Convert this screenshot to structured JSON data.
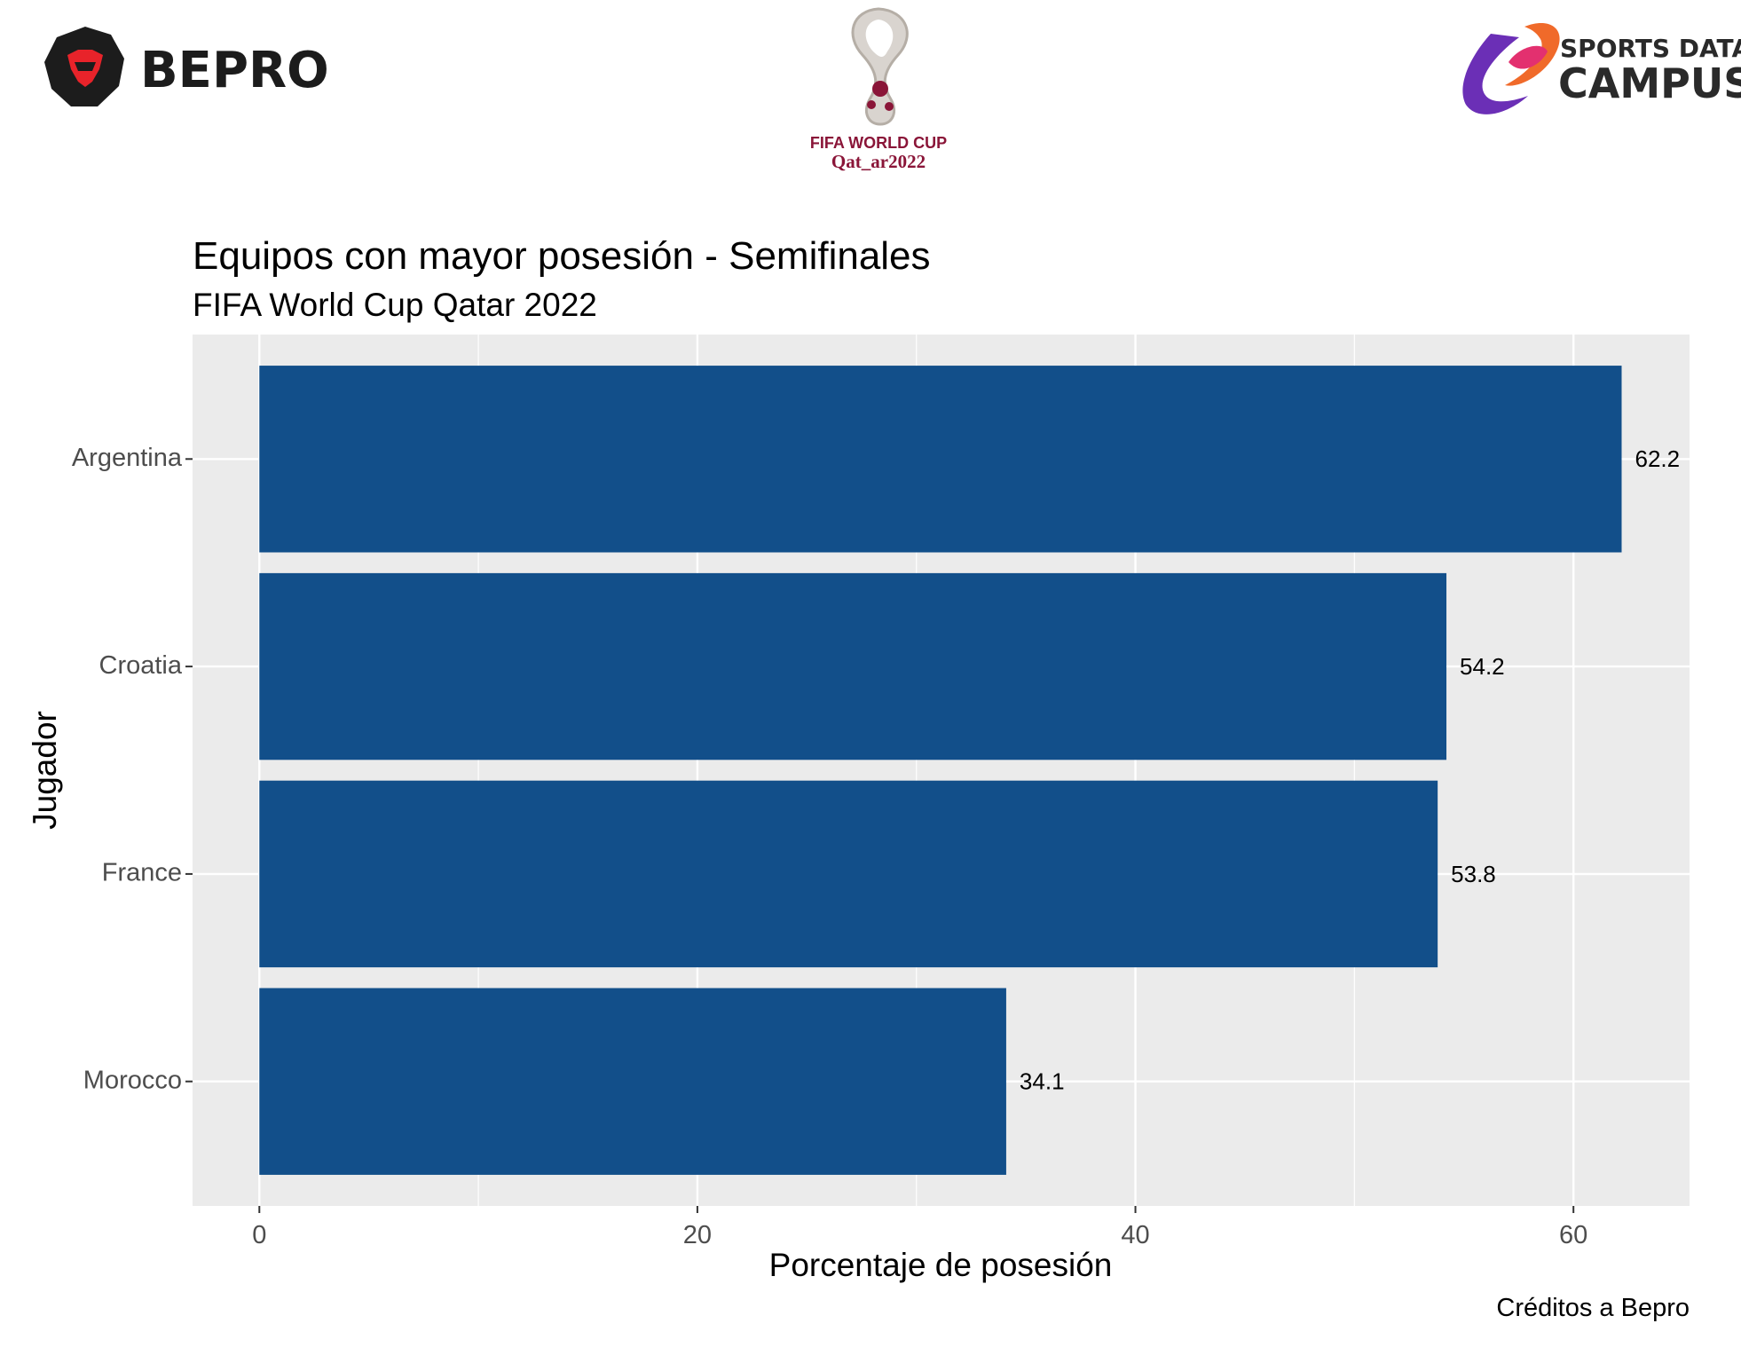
{
  "logos": {
    "left": {
      "text": "BEPRO",
      "colors": {
        "hex": "#1c1c1c",
        "face": "#e8232a"
      }
    },
    "center": {
      "line1": "FIFA WORLD CUP",
      "line2": "Qat_ar2022",
      "color": "#8a1538"
    },
    "right": {
      "line1": "SPORTS DATA",
      "line2": "CAMPUS",
      "color": "#2a2a2a"
    }
  },
  "chart_data": {
    "type": "bar",
    "orientation": "horizontal",
    "title": "Equipos con mayor posesión - Semifinales",
    "subtitle": "FIFA World Cup Qatar 2022",
    "xlabel": "Porcentaje de posesión",
    "ylabel": "Jugador",
    "caption": "Créditos a Bepro",
    "categories": [
      "Argentina",
      "Croatia",
      "France",
      "Morocco"
    ],
    "values": [
      62.2,
      54.2,
      53.8,
      34.1
    ],
    "value_labels": [
      "62.2",
      "54.2",
      "53.8",
      "34.1"
    ],
    "xlim": [
      -3.05,
      65.3
    ],
    "x_ticks": [
      0,
      20,
      40,
      60
    ],
    "x_tick_labels": [
      "0",
      "20",
      "40",
      "60"
    ],
    "grid": true,
    "colors": {
      "bar": "#124f8a",
      "panel": "#ebebeb",
      "grid": "#ffffff"
    }
  }
}
